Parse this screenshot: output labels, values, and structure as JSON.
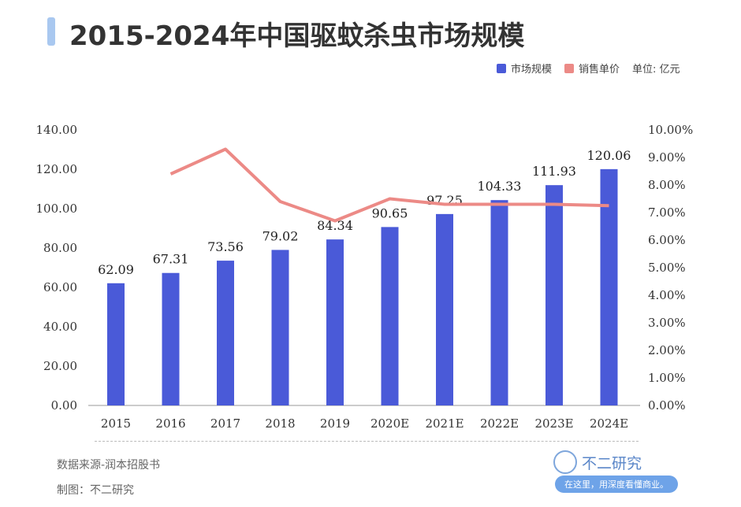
{
  "title": "2015-2024年中国驱蚊杀虫市场规模",
  "legend": {
    "bar_label": "市场规模",
    "line_label": "销售单价",
    "unit": "单位: 亿元"
  },
  "colors": {
    "bar": "#4a5ad8",
    "line": "#ec8a86",
    "title_accent": "#a9c8f0"
  },
  "chart_data": {
    "type": "bar+line",
    "title": "2015-2024年中国驱蚊杀虫市场规模",
    "categories": [
      "2015",
      "2016",
      "2017",
      "2018",
      "2019",
      "2020E",
      "2021E",
      "2022E",
      "2023E",
      "2024E"
    ],
    "series": [
      {
        "name": "市场规模",
        "type": "bar",
        "axis": "left",
        "values": [
          62.09,
          67.31,
          73.56,
          79.02,
          84.34,
          90.65,
          97.25,
          104.33,
          111.93,
          120.06
        ],
        "labels": [
          "62.09",
          "67.31",
          "73.56",
          "79.02",
          "84.34",
          "90.65",
          "97.25",
          "104.33",
          "111.93",
          "120.06"
        ]
      },
      {
        "name": "销售单价",
        "type": "line",
        "axis": "right",
        "values": [
          null,
          8.4,
          9.3,
          7.4,
          6.7,
          7.5,
          7.3,
          7.3,
          7.3,
          7.25
        ]
      }
    ],
    "y_left": {
      "range": [
        0,
        140
      ],
      "ticks": [
        "0.00",
        "20.00",
        "40.00",
        "60.00",
        "80.00",
        "100.00",
        "120.00",
        "140.00"
      ]
    },
    "y_right": {
      "range": [
        0,
        10
      ],
      "ticks": [
        "0.00%",
        "1.00%",
        "2.00%",
        "3.00%",
        "4.00%",
        "5.00%",
        "6.00%",
        "7.00%",
        "8.00%",
        "9.00%",
        "10.00%"
      ]
    },
    "grid": false,
    "legend_position": "top-right"
  },
  "footer": {
    "source": "数据来源-润本招股书",
    "made_by": "制图：不二研究"
  },
  "logo": {
    "name": "不二研究",
    "slogan": "在这里，用深度看懂商业。"
  }
}
